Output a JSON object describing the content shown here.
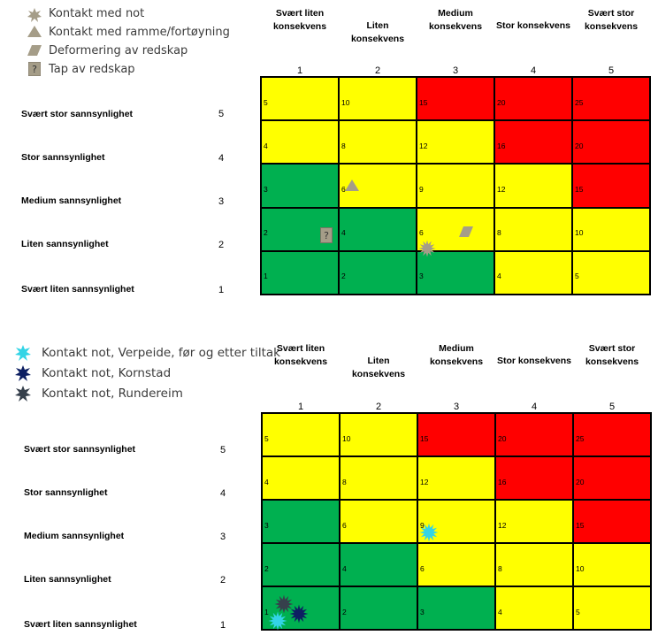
{
  "colors": {
    "green": "#00b050",
    "yellow": "#ffff00",
    "red": "#ff0000",
    "khaki": "#a59d88",
    "cyan": "#33d4e6",
    "navy": "#0d1f62",
    "darkgray": "#36404c"
  },
  "chart_data": [
    {
      "type": "table",
      "legend": [
        {
          "label": "Kontakt med not",
          "icon": "star-icon"
        },
        {
          "label": "Kontakt med ramme/fortøyning",
          "icon": "triangle-icon"
        },
        {
          "label": "Deformering av redskap",
          "icon": "parallelogram-icon"
        },
        {
          "label": "Tap av redskap",
          "icon": "question-box-icon"
        }
      ],
      "consequence_labels": [
        "Svært liten konsekvens",
        "Liten konsekvens",
        "Medium konsekvens",
        "Stor konsekvens",
        "Svært stor konsekvens"
      ],
      "consequence_numbers": [
        "1",
        "2",
        "3",
        "4",
        "5"
      ],
      "probability_labels": [
        "Svært stor sannsynlighet",
        "Stor sannsynlighet",
        "Medium sannsynlighet",
        "Liten sannsynlighet",
        "Svært liten sannsynlighet"
      ],
      "probability_numbers": [
        "5",
        "4",
        "3",
        "2",
        "1"
      ],
      "cell_values": [
        [
          "5",
          "10",
          "15",
          "20",
          "25"
        ],
        [
          "4",
          "8",
          "12",
          "16",
          "20"
        ],
        [
          "3",
          "6",
          "9",
          "12",
          "15"
        ],
        [
          "2",
          "4",
          "6",
          "8",
          "10"
        ],
        [
          "1",
          "2",
          "3",
          "4",
          "5"
        ]
      ],
      "cell_colors": [
        [
          "yellow",
          "yellow",
          "red",
          "red",
          "red"
        ],
        [
          "yellow",
          "yellow",
          "yellow",
          "red",
          "red"
        ],
        [
          "green",
          "yellow",
          "yellow",
          "yellow",
          "red"
        ],
        [
          "green",
          "green",
          "yellow",
          "yellow",
          "yellow"
        ],
        [
          "green",
          "green",
          "green",
          "yellow",
          "yellow"
        ]
      ],
      "markers": [
        {
          "type": "question-box-icon",
          "consequence": 1,
          "probability": 2
        },
        {
          "type": "triangle-icon",
          "consequence": 2,
          "probability": 3
        },
        {
          "type": "star-icon",
          "consequence": 3,
          "probability": 2
        },
        {
          "type": "parallelogram-icon",
          "consequence": 3,
          "probability": 2
        }
      ]
    },
    {
      "type": "table",
      "legend": [
        {
          "label": "Kontakt not, Verpeide, før og etter tiltak",
          "icon": "cyan-star-icon"
        },
        {
          "label": "Kontakt not, Kornstad",
          "icon": "navy-star-icon"
        },
        {
          "label": "Kontakt not, Rundereim",
          "icon": "darkgray-star-icon"
        }
      ],
      "consequence_labels": [
        "Svært liten konsekvens",
        "Liten konsekvens",
        "Medium konsekvens",
        "Stor konsekvens",
        "Svært stor konsekvens"
      ],
      "consequence_numbers": [
        "1",
        "2",
        "3",
        "4",
        "5"
      ],
      "probability_labels": [
        "Svært stor sannsynlighet",
        "Stor sannsynlighet",
        "Medium sannsynlighet",
        "Liten sannsynlighet",
        "Svært liten sannsynlighet"
      ],
      "probability_numbers": [
        "5",
        "4",
        "3",
        "2",
        "1"
      ],
      "cell_values": [
        [
          "5",
          "10",
          "15",
          "20",
          "25"
        ],
        [
          "4",
          "8",
          "12",
          "16",
          "20"
        ],
        [
          "3",
          "6",
          "9",
          "12",
          "15"
        ],
        [
          "2",
          "4",
          "6",
          "8",
          "10"
        ],
        [
          "1",
          "2",
          "3",
          "4",
          "5"
        ]
      ],
      "cell_colors": [
        [
          "yellow",
          "yellow",
          "red",
          "red",
          "red"
        ],
        [
          "yellow",
          "yellow",
          "yellow",
          "red",
          "red"
        ],
        [
          "green",
          "yellow",
          "yellow",
          "yellow",
          "red"
        ],
        [
          "green",
          "green",
          "yellow",
          "yellow",
          "yellow"
        ],
        [
          "green",
          "green",
          "green",
          "yellow",
          "yellow"
        ]
      ],
      "markers": [
        {
          "type": "cyan-star-icon",
          "consequence": 3,
          "probability": 3
        },
        {
          "type": "darkgray-star-icon",
          "consequence": 1,
          "probability": 1
        },
        {
          "type": "navy-star-icon",
          "consequence": 1,
          "probability": 1
        },
        {
          "type": "cyan-star-icon",
          "consequence": 1,
          "probability": 1
        }
      ]
    }
  ]
}
